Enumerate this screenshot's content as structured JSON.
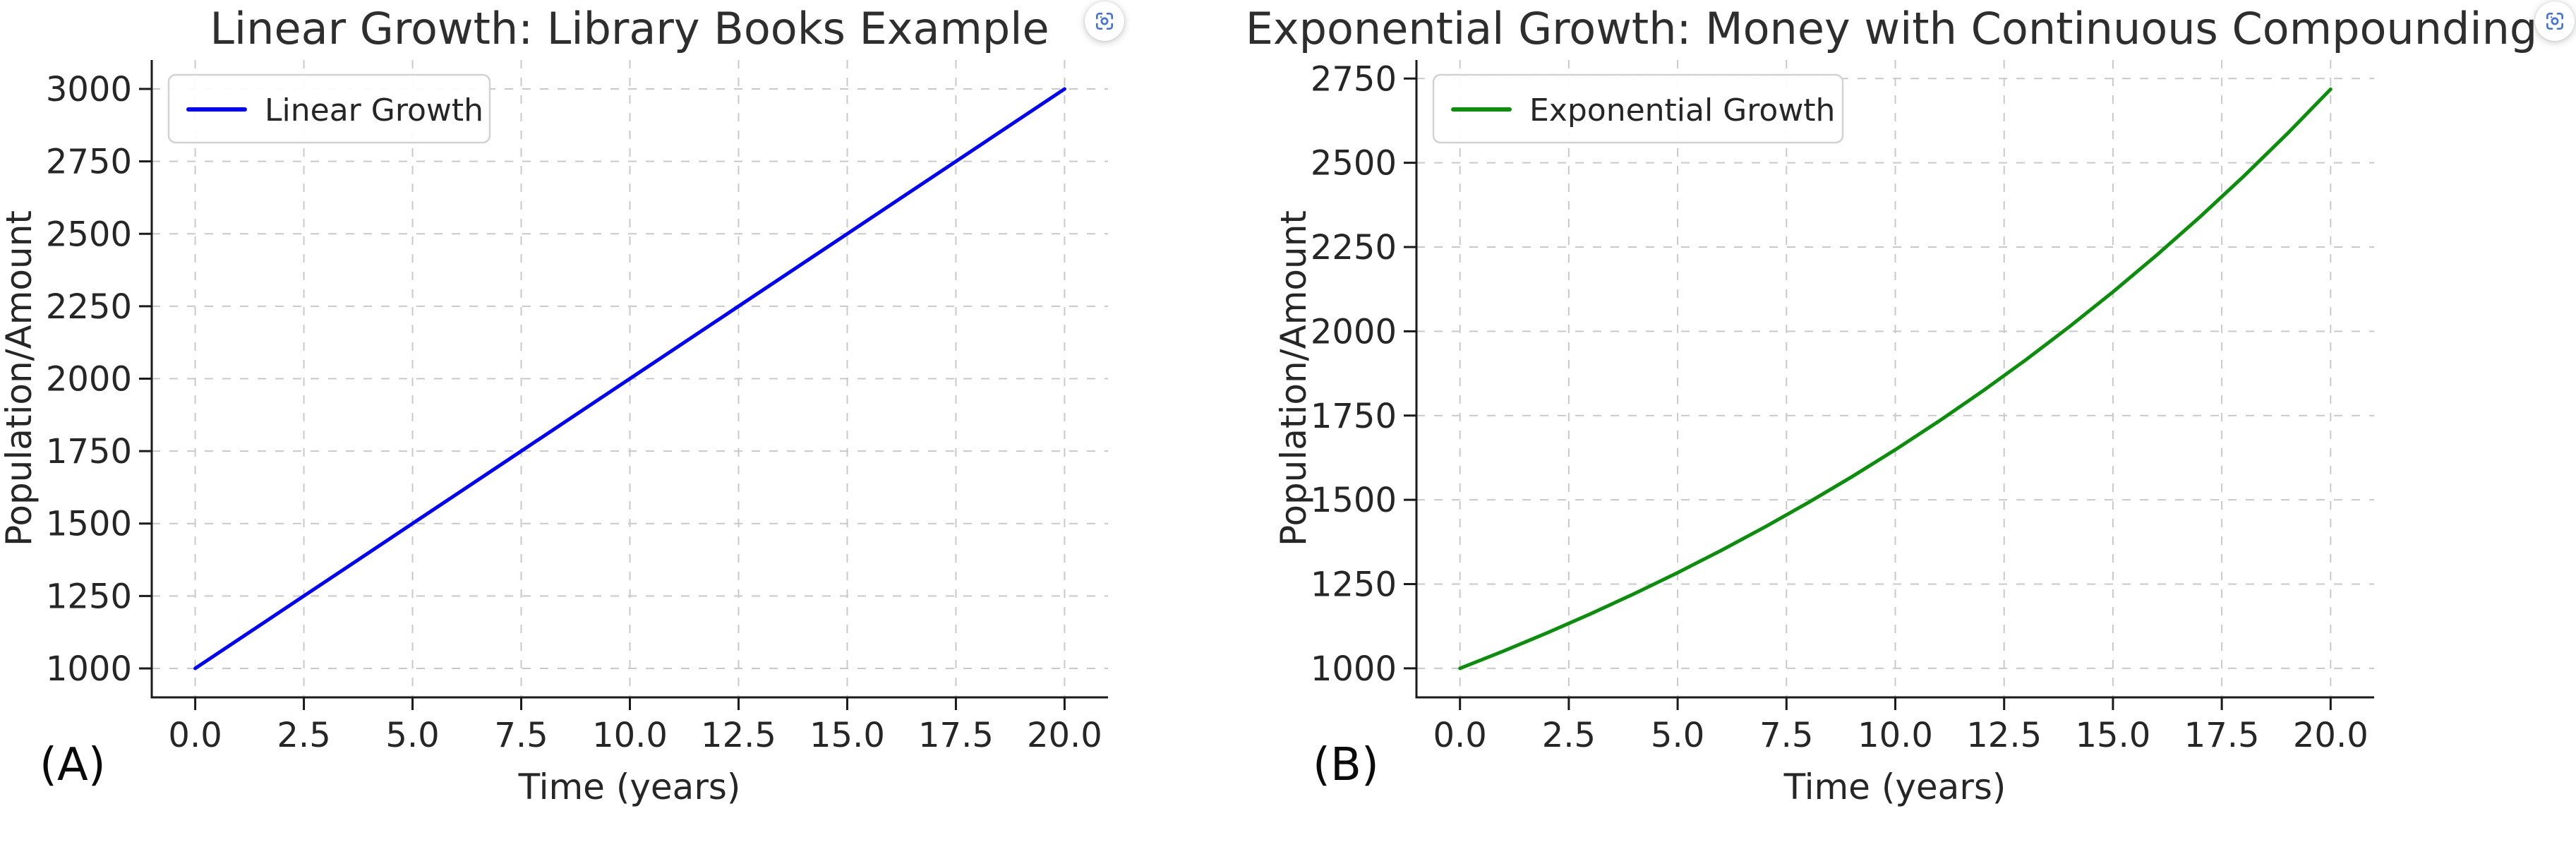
{
  "page": {
    "background": "#ffffff"
  },
  "panels": [
    {
      "label": "(A)"
    },
    {
      "label": "(B)"
    }
  ],
  "icons": {
    "expand_button": "focus-expand-icon",
    "icon_color": "#4273db"
  },
  "colors": {
    "grid": "#c9c9c9",
    "axis": "#1a1a1a",
    "text": "#262626",
    "title": "#2e2e2e",
    "legend_border": "#d2d2d2",
    "legend_fill": "#ffffff"
  },
  "chart_data": [
    {
      "type": "line",
      "title": "Linear Growth: Library Books Example",
      "xlabel": "Time (years)",
      "ylabel": "Population/Amount",
      "grid": true,
      "legend_position": "upper left",
      "xlim": [
        -1,
        21
      ],
      "ylim": [
        900,
        3100
      ],
      "xticks": {
        "values": [
          0,
          2.5,
          5,
          7.5,
          10,
          12.5,
          15,
          17.5,
          20
        ],
        "labels": [
          "0.0",
          "2.5",
          "5.0",
          "7.5",
          "10.0",
          "12.5",
          "15.0",
          "17.5",
          "20.0"
        ]
      },
      "yticks": {
        "values": [
          1000,
          1250,
          1500,
          1750,
          2000,
          2250,
          2500,
          2750,
          3000
        ],
        "labels": [
          "1000",
          "1250",
          "1500",
          "1750",
          "2000",
          "2250",
          "2500",
          "2750",
          "3000"
        ]
      },
      "series": [
        {
          "name": "Linear Growth",
          "color": "#0000ff",
          "x": [
            0,
            2.5,
            5,
            7.5,
            10,
            12.5,
            15,
            17.5,
            20
          ],
          "y": [
            1000,
            1250,
            1500,
            1750,
            2000,
            2250,
            2500,
            2750,
            3000
          ]
        }
      ]
    },
    {
      "type": "line",
      "title": "Exponential Growth: Money with Continuous Compounding",
      "xlabel": "Time (years)",
      "ylabel": "Population/Amount",
      "grid": true,
      "legend_position": "upper left",
      "xlim": [
        -1,
        21
      ],
      "ylim": [
        914,
        2805
      ],
      "xticks": {
        "values": [
          0,
          2.5,
          5,
          7.5,
          10,
          12.5,
          15,
          17.5,
          20
        ],
        "labels": [
          "0.0",
          "2.5",
          "5.0",
          "7.5",
          "10.0",
          "12.5",
          "15.0",
          "17.5",
          "20.0"
        ]
      },
      "yticks": {
        "values": [
          1000,
          1250,
          1500,
          1750,
          2000,
          2250,
          2500,
          2750
        ],
        "labels": [
          "1000",
          "1250",
          "1500",
          "1750",
          "2000",
          "2250",
          "2500",
          "2750"
        ]
      },
      "series": [
        {
          "name": "Exponential Growth",
          "color": "#0a8f0a",
          "x": [
            0,
            1,
            2,
            3,
            4,
            5,
            6,
            7,
            8,
            9,
            10,
            11,
            12,
            13,
            14,
            15,
            16,
            17,
            18,
            19,
            20
          ],
          "y": [
            1000.0,
            1051.3,
            1105.2,
            1161.8,
            1221.4,
            1284.0,
            1349.9,
            1419.1,
            1491.8,
            1568.3,
            1648.7,
            1733.3,
            1822.1,
            1915.5,
            2013.8,
            2117.0,
            2225.5,
            2339.6,
            2459.6,
            2585.7,
            2718.3
          ]
        }
      ]
    }
  ]
}
